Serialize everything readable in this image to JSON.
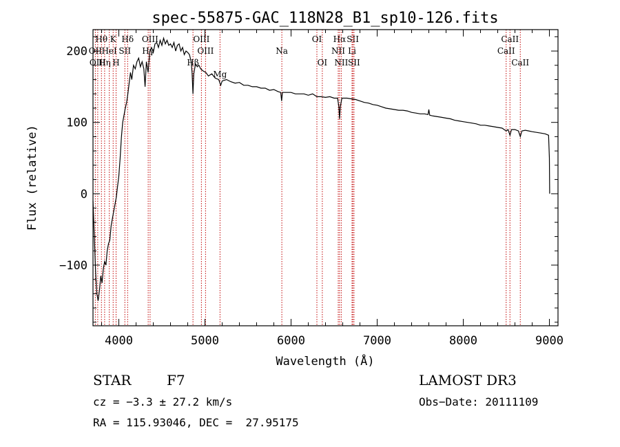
{
  "chart_data": {
    "type": "line",
    "title": "spec-55875-GAC_118N28_B1_sp10-126.fits",
    "xlabel": "Wavelength (Å)",
    "ylabel": "Flux (relative)",
    "xlim": [
      3700,
      9100
    ],
    "ylim": [
      -185,
      230
    ],
    "x_ticks": [
      4000,
      5000,
      6000,
      7000,
      8000,
      9000
    ],
    "y_ticks": [
      -100,
      0,
      100,
      200
    ],
    "line_color": "#c00000",
    "series": [
      {
        "name": "flux",
        "points": [
          [
            3700,
            -10
          ],
          [
            3715,
            -60
          ],
          [
            3730,
            -110
          ],
          [
            3745,
            -140
          ],
          [
            3760,
            -150
          ],
          [
            3775,
            -135
          ],
          [
            3790,
            -115
          ],
          [
            3805,
            -125
          ],
          [
            3820,
            -105
          ],
          [
            3835,
            -95
          ],
          [
            3850,
            -100
          ],
          [
            3865,
            -80
          ],
          [
            3880,
            -70
          ],
          [
            3895,
            -65
          ],
          [
            3910,
            -45
          ],
          [
            3925,
            -35
          ],
          [
            3940,
            -25
          ],
          [
            3955,
            -15
          ],
          [
            3970,
            -5
          ],
          [
            3985,
            10
          ],
          [
            4000,
            25
          ],
          [
            4015,
            50
          ],
          [
            4030,
            80
          ],
          [
            4045,
            100
          ],
          [
            4060,
            110
          ],
          [
            4075,
            120
          ],
          [
            4090,
            128
          ],
          [
            4105,
            140
          ],
          [
            4120,
            155
          ],
          [
            4135,
            170
          ],
          [
            4150,
            160
          ],
          [
            4170,
            180
          ],
          [
            4190,
            175
          ],
          [
            4210,
            185
          ],
          [
            4230,
            190
          ],
          [
            4250,
            178
          ],
          [
            4270,
            185
          ],
          [
            4290,
            175
          ],
          [
            4305,
            150
          ],
          [
            4320,
            185
          ],
          [
            4340,
            170
          ],
          [
            4360,
            200
          ],
          [
            4380,
            205
          ],
          [
            4400,
            198
          ],
          [
            4420,
            210
          ],
          [
            4440,
            212
          ],
          [
            4460,
            205
          ],
          [
            4480,
            215
          ],
          [
            4500,
            208
          ],
          [
            4520,
            218
          ],
          [
            4540,
            210
          ],
          [
            4560,
            215
          ],
          [
            4580,
            208
          ],
          [
            4600,
            210
          ],
          [
            4620,
            205
          ],
          [
            4640,
            212
          ],
          [
            4660,
            200
          ],
          [
            4680,
            208
          ],
          [
            4700,
            210
          ],
          [
            4720,
            200
          ],
          [
            4740,
            205
          ],
          [
            4760,
            195
          ],
          [
            4780,
            200
          ],
          [
            4800,
            198
          ],
          [
            4820,
            195
          ],
          [
            4840,
            185
          ],
          [
            4850,
            170
          ],
          [
            4861,
            140
          ],
          [
            4870,
            168
          ],
          [
            4890,
            182
          ],
          [
            4910,
            178
          ],
          [
            4930,
            180
          ],
          [
            4950,
            175
          ],
          [
            4980,
            172
          ],
          [
            5010,
            170
          ],
          [
            5040,
            165
          ],
          [
            5080,
            168
          ],
          [
            5120,
            162
          ],
          [
            5160,
            160
          ],
          [
            5183,
            152
          ],
          [
            5200,
            158
          ],
          [
            5250,
            160
          ],
          [
            5300,
            157
          ],
          [
            5350,
            155
          ],
          [
            5400,
            156
          ],
          [
            5450,
            152
          ],
          [
            5500,
            152
          ],
          [
            5550,
            150
          ],
          [
            5600,
            150
          ],
          [
            5650,
            148
          ],
          [
            5700,
            148
          ],
          [
            5750,
            145
          ],
          [
            5800,
            146
          ],
          [
            5850,
            143
          ],
          [
            5880,
            142
          ],
          [
            5890,
            130
          ],
          [
            5900,
            142
          ],
          [
            5950,
            142
          ],
          [
            6000,
            142
          ],
          [
            6050,
            140
          ],
          [
            6100,
            140
          ],
          [
            6150,
            140
          ],
          [
            6200,
            138
          ],
          [
            6250,
            140
          ],
          [
            6300,
            136
          ],
          [
            6350,
            136
          ],
          [
            6400,
            135
          ],
          [
            6450,
            136
          ],
          [
            6500,
            134
          ],
          [
            6540,
            134
          ],
          [
            6555,
            122
          ],
          [
            6563,
            105
          ],
          [
            6572,
            122
          ],
          [
            6590,
            134
          ],
          [
            6650,
            134
          ],
          [
            6700,
            133
          ],
          [
            6750,
            132
          ],
          [
            6800,
            130
          ],
          [
            6850,
            128
          ],
          [
            6900,
            127
          ],
          [
            6950,
            125
          ],
          [
            7000,
            124
          ],
          [
            7050,
            122
          ],
          [
            7100,
            120
          ],
          [
            7150,
            119
          ],
          [
            7200,
            118
          ],
          [
            7250,
            117
          ],
          [
            7300,
            117
          ],
          [
            7350,
            116
          ],
          [
            7400,
            114
          ],
          [
            7450,
            113
          ],
          [
            7500,
            112
          ],
          [
            7550,
            112
          ],
          [
            7590,
            111
          ],
          [
            7600,
            118
          ],
          [
            7610,
            110
          ],
          [
            7650,
            109
          ],
          [
            7700,
            108
          ],
          [
            7750,
            107
          ],
          [
            7800,
            106
          ],
          [
            7850,
            105
          ],
          [
            7900,
            103
          ],
          [
            7950,
            102
          ],
          [
            8000,
            101
          ],
          [
            8050,
            100
          ],
          [
            8100,
            99
          ],
          [
            8150,
            98
          ],
          [
            8200,
            96
          ],
          [
            8250,
            96
          ],
          [
            8300,
            95
          ],
          [
            8350,
            94
          ],
          [
            8400,
            93
          ],
          [
            8450,
            92
          ],
          [
            8498,
            88
          ],
          [
            8520,
            90
          ],
          [
            8542,
            82
          ],
          [
            8560,
            90
          ],
          [
            8600,
            90
          ],
          [
            8640,
            88
          ],
          [
            8662,
            80
          ],
          [
            8680,
            88
          ],
          [
            8720,
            89
          ],
          [
            8760,
            88
          ],
          [
            8800,
            87
          ],
          [
            8850,
            86
          ],
          [
            8900,
            85
          ],
          [
            8950,
            84
          ],
          [
            8990,
            82
          ],
          [
            9000,
            50
          ],
          [
            9003,
            0
          ]
        ]
      }
    ],
    "lines": [
      {
        "label": "Hθ",
        "wave": 3798,
        "row": 0
      },
      {
        "label": "OII",
        "wave": 3727,
        "row": 1
      },
      {
        "label": "OIII",
        "wave": 3755,
        "row": 2
      },
      {
        "label": "Hη",
        "wave": 3835,
        "row": 2
      },
      {
        "label": "HeI",
        "wave": 3889,
        "row": 1
      },
      {
        "label": "K",
        "wave": 3934,
        "row": 0
      },
      {
        "label": "SII",
        "wave": 4070,
        "row": 1
      },
      {
        "label": "H",
        "wave": 3968,
        "row": 2
      },
      {
        "label": "Hδ",
        "wave": 4102,
        "row": 0
      },
      {
        "label": "OIII",
        "wave": 4363,
        "row": 0
      },
      {
        "label": "Hγ",
        "wave": 4341,
        "row": 1
      },
      {
        "label": "OIII",
        "wave": 4959,
        "row": 0
      },
      {
        "label": "OIII",
        "wave": 5007,
        "row": 1
      },
      {
        "label": "Hβ",
        "wave": 4861,
        "row": 2
      },
      {
        "label": "Mg",
        "wave": 5175,
        "row": 3
      },
      {
        "label": "Na",
        "wave": 5893,
        "row": 1
      },
      {
        "label": "OI",
        "wave": 6300,
        "row": 0
      },
      {
        "label": "OI",
        "wave": 6363,
        "row": 2
      },
      {
        "label": "Hα",
        "wave": 6563,
        "row": 0
      },
      {
        "label": "NII",
        "wave": 6548,
        "row": 1
      },
      {
        "label": "NII",
        "wave": 6583,
        "row": 2
      },
      {
        "label": "SII",
        "wave": 6717,
        "row": 0
      },
      {
        "label": "Li",
        "wave": 6708,
        "row": 1
      },
      {
        "label": "SII",
        "wave": 6731,
        "row": 2
      },
      {
        "label": "CaII",
        "wave": 8542,
        "row": 0
      },
      {
        "label": "CaII",
        "wave": 8498,
        "row": 1
      },
      {
        "label": "CaII",
        "wave": 8662,
        "row": 2
      }
    ]
  },
  "info": {
    "class": "STAR",
    "subclass": "F7",
    "survey": "LAMOST DR3",
    "cz": "cz = −3.3 ± 27.2 km/s",
    "obs_date": "Obs−Date: 20111109",
    "coords": "RA = 115.93046, DEC =  27.95175"
  }
}
